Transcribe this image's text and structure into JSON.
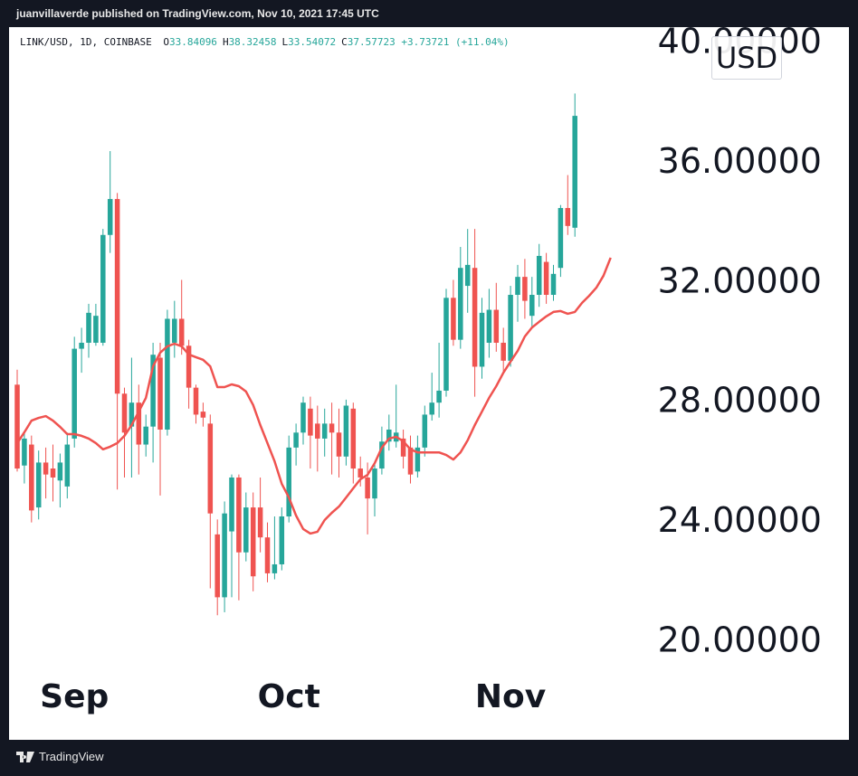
{
  "header": "juanvillaverde published on TradingView.com, Nov 10, 2021 17:45 UTC",
  "footer": "TradingView",
  "chart_data": {
    "type": "candlestick",
    "legend": {
      "symbol": "LINK/USD, 1D, COINBASE",
      "items": [
        {
          "key": "O",
          "value": "33.84096"
        },
        {
          "key": "H",
          "value": "38.32458"
        },
        {
          "key": "L",
          "value": "33.54072"
        },
        {
          "key": "C",
          "value": "37.57723"
        }
      ],
      "change": "+3.73721 (+11.04%)"
    },
    "currency": "USD",
    "up_color": "#26a69a",
    "down_color": "#ef5350",
    "open": [
      28.6,
      25.9,
      26.6,
      24.5,
      26.0,
      25.8,
      25.4,
      25.2,
      26.8,
      29.8,
      30.0,
      30.0,
      30.0,
      33.6,
      34.8,
      28.3,
      27.2,
      28.0,
      26.6,
      27.2,
      29.5,
      27.1,
      30.0,
      30.8,
      29.9,
      28.5,
      27.7,
      27.3,
      23.6,
      21.5,
      23.7,
      25.5,
      23.0,
      24.5,
      24.5,
      23.5,
      22.3,
      22.6,
      24.2,
      26.5,
      27.0,
      27.8,
      27.3,
      26.8,
      27.3,
      27.0,
      26.2,
      27.8,
      25.8,
      25.5,
      24.8,
      25.8,
      26.7,
      26.7,
      26.8,
      26.5,
      25.7,
      26.5,
      27.6,
      28.0,
      28.4,
      31.5,
      30.1,
      31.9,
      32.5,
      29.2,
      30.0,
      31.1,
      30.0,
      29.4,
      31.6,
      32.2,
      30.9,
      31.6,
      32.7,
      31.6,
      32.5,
      34.5,
      33.84096
    ],
    "high": [
      29.1,
      27.0,
      26.9,
      26.4,
      26.5,
      26.6,
      26.3,
      27.0,
      30.2,
      30.5,
      31.3,
      31.3,
      33.8,
      36.4,
      35.0,
      28.5,
      29.5,
      28.6,
      27.6,
      30.0,
      30.0,
      31.1,
      31.4,
      32.1,
      30.1,
      28.6,
      28.0,
      27.6,
      24.1,
      24.7,
      25.6,
      25.6,
      25.0,
      25.0,
      25.5,
      24.0,
      24.2,
      24.5,
      26.9,
      27.3,
      28.2,
      28.2,
      27.9,
      27.8,
      28.0,
      27.8,
      28.1,
      28.0,
      26.2,
      26.0,
      26.0,
      27.2,
      27.6,
      28.6,
      27.1,
      26.9,
      26.9,
      27.9,
      29.0,
      30.0,
      31.8,
      32.1,
      33.2,
      33.8,
      33.8,
      31.5,
      31.8,
      32.0,
      30.5,
      31.9,
      32.6,
      32.8,
      32.2,
      33.3,
      33.0,
      32.6,
      34.6,
      35.6,
      38.32458
    ],
    "low": [
      25.7,
      25.3,
      24.0,
      24.1,
      24.8,
      24.7,
      24.5,
      24.8,
      26.5,
      29.0,
      29.5,
      29.9,
      29.9,
      33.0,
      25.1,
      25.5,
      25.5,
      25.6,
      26.2,
      26.0,
      24.9,
      26.9,
      29.5,
      29.6,
      27.8,
      27.3,
      27.2,
      21.8,
      20.9,
      21.0,
      21.5,
      21.4,
      22.7,
      21.7,
      23.0,
      22.0,
      22.1,
      22.4,
      24.0,
      25.9,
      26.6,
      25.8,
      25.7,
      26.2,
      25.6,
      25.5,
      25.9,
      25.3,
      25.2,
      23.6,
      24.2,
      25.6,
      26.4,
      26.5,
      25.8,
      25.3,
      25.5,
      26.2,
      27.4,
      27.5,
      28.2,
      29.9,
      29.8,
      31.0,
      28.2,
      28.8,
      29.5,
      29.7,
      29.0,
      29.2,
      30.7,
      30.8,
      30.5,
      31.2,
      31.3,
      31.4,
      32.2,
      33.6,
      33.54072
    ],
    "close": [
      25.8,
      26.8,
      24.4,
      26.0,
      25.6,
      25.5,
      26.0,
      26.6,
      29.8,
      30.0,
      31.0,
      30.9,
      33.6,
      34.8,
      28.3,
      27.0,
      28.0,
      26.6,
      27.2,
      29.6,
      27.1,
      30.8,
      30.8,
      29.9,
      28.5,
      27.6,
      27.5,
      24.3,
      21.5,
      24.3,
      25.5,
      23.0,
      24.5,
      22.2,
      23.5,
      22.3,
      22.6,
      24.2,
      26.5,
      27.0,
      28.0,
      26.9,
      26.8,
      27.3,
      27.0,
      26.2,
      27.9,
      25.8,
      25.5,
      24.8,
      25.8,
      26.7,
      27.1,
      27.0,
      26.2,
      25.6,
      26.5,
      27.6,
      28.0,
      28.4,
      31.5,
      30.1,
      32.5,
      32.6,
      29.2,
      31.0,
      31.1,
      30.0,
      29.4,
      31.6,
      32.2,
      31.4,
      31.6,
      32.9,
      31.6,
      32.3,
      34.5,
      33.9,
      37.57723
    ],
    "ma": {
      "color": "#ef5350",
      "values": [
        26.65,
        27.01,
        27.4,
        27.49,
        27.55,
        27.4,
        27.19,
        26.95,
        26.95,
        26.89,
        26.8,
        26.65,
        26.44,
        26.53,
        26.65,
        26.89,
        27.25,
        27.7,
        28.16,
        29.21,
        29.67,
        29.88,
        29.97,
        29.88,
        29.61,
        29.52,
        29.43,
        29.21,
        28.52,
        28.52,
        28.61,
        28.55,
        28.37,
        27.92,
        27.25,
        26.65,
        26.04,
        25.29,
        24.83,
        24.23,
        23.78,
        23.63,
        23.69,
        24.08,
        24.32,
        24.53,
        24.83,
        25.14,
        25.44,
        25.59,
        25.98,
        26.5,
        26.8,
        26.86,
        26.71,
        26.44,
        26.34,
        26.34,
        26.34,
        26.34,
        26.25,
        26.1,
        26.34,
        26.74,
        27.25,
        27.7,
        28.16,
        28.55,
        29.0,
        29.37,
        29.73,
        30.21,
        30.51,
        30.7,
        30.88,
        31.03,
        31.06,
        30.97,
        31.03,
        31.33,
        31.57,
        31.84,
        32.24,
        32.84
      ]
    },
    "xlim": [
      -1.14,
      90
    ],
    "xticks": [
      {
        "value": 8,
        "label": "Sep"
      },
      {
        "value": 38,
        "label": "Oct"
      },
      {
        "value": 69,
        "label": "Nov"
      }
    ],
    "ylim": [
      16.74,
      40.54
    ],
    "yticks": [
      {
        "value": 20,
        "label": "20.00000"
      },
      {
        "value": 24,
        "label": "24.00000"
      },
      {
        "value": 28,
        "label": "28.00000"
      },
      {
        "value": 32,
        "label": "32.00000"
      },
      {
        "value": 36,
        "label": "36.00000"
      },
      {
        "value": 40,
        "label": "40.00000"
      }
    ]
  }
}
